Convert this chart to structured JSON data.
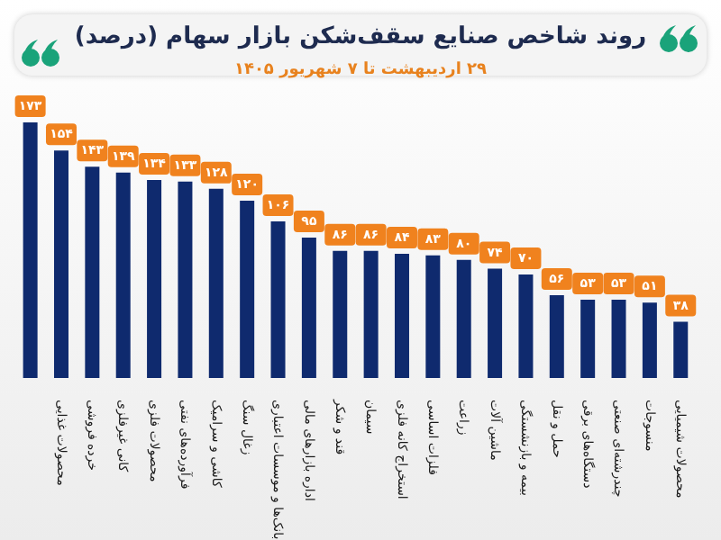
{
  "chart_data": {
    "type": "bar",
    "title": "روند شاخص صنایع سقف‌شکن بازار سهام (درصد)",
    "subtitle": "۲۹ اردیبهشت تا ۷ شهریور ۱۴۰۵",
    "categories": [
      null,
      "محصولات غذایی",
      "خرده فروشی",
      "کانی غیرفلزی",
      "محصولات فلزی",
      "فرآورده‌های نفتی",
      "کاشی و سرامیک",
      "زغال سنگ",
      "بانک‌ها و موسسات اعتباری",
      "اداره بازارهای مالی",
      "قند و شکر",
      "سیمان",
      "استخراج کانه فلزی",
      "فلزات اساسی",
      "زراعت",
      "ماشین آلات",
      "بیمه و بازنشستگی",
      "حمل و نقل",
      "دستگاه‌های برقی",
      "چندرشته‌ای صنعتی",
      "منسوجات",
      "محصولات شیمیایی"
    ],
    "values": [
      173,
      154,
      143,
      139,
      134,
      133,
      128,
      120,
      106,
      95,
      86,
      86,
      84,
      83,
      80,
      74,
      70,
      56,
      53,
      53,
      51,
      38
    ],
    "value_labels": [
      "۱۷۳",
      "۱۵۴",
      "۱۴۳",
      "۱۳۹",
      "۱۳۴",
      "۱۳۳",
      "۱۲۸",
      "۱۲۰",
      "۱۰۶",
      "۹۵",
      "۸۶",
      "۸۶",
      "۸۴",
      "۸۳",
      "۸۰",
      "۷۴",
      "۷۰",
      "۵۶",
      "۵۳",
      "۵۳",
      "۵۱",
      "۳۸"
    ],
    "color": "#0f2a6e",
    "grid": false,
    "legend": false
  }
}
